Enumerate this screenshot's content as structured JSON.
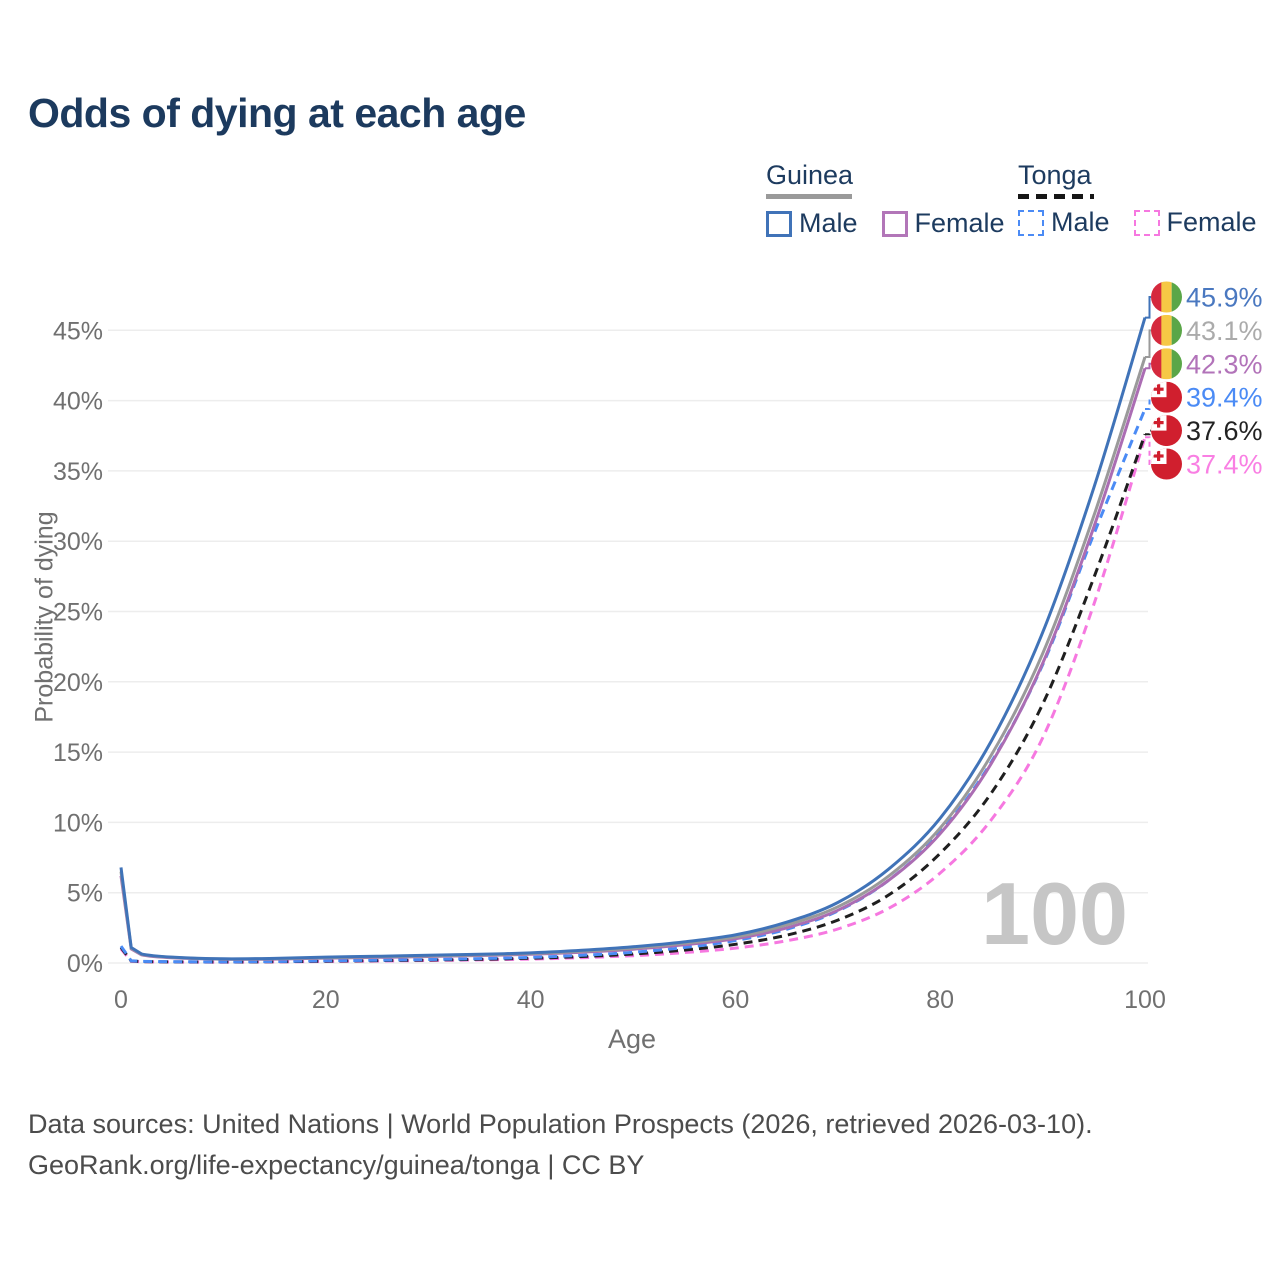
{
  "title": "Odds of dying at each age",
  "legend": {
    "groups": [
      {
        "title": "Guinea",
        "underline": "solid",
        "items": [
          {
            "label": "Male",
            "color": "#4073b8",
            "dashed": false
          },
          {
            "label": "Female",
            "color": "#b276b8",
            "dashed": false
          }
        ]
      },
      {
        "title": "Tonga",
        "underline": "dashed",
        "items": [
          {
            "label": "Male",
            "color": "#4b8bf5",
            "dashed": true
          },
          {
            "label": "Female",
            "color": "#f678e0",
            "dashed": true
          }
        ]
      }
    ]
  },
  "chart_data": {
    "type": "line",
    "title": "Odds of dying at each age",
    "xlabel": "Age",
    "ylabel": "Probability of dying",
    "xlim": [
      0,
      100
    ],
    "ylim": [
      0,
      47
    ],
    "xticks": [
      0,
      20,
      40,
      60,
      80,
      100
    ],
    "yticks": [
      0,
      5,
      10,
      15,
      20,
      25,
      30,
      35,
      40,
      45
    ],
    "grid": true,
    "legend_position": "top-right",
    "watermark": "100",
    "x": [
      0,
      1,
      2,
      5,
      10,
      15,
      20,
      25,
      30,
      35,
      40,
      45,
      50,
      55,
      60,
      65,
      70,
      75,
      80,
      85,
      90,
      95,
      100
    ],
    "series": [
      {
        "name": "Guinea Male",
        "country": "Guinea",
        "sex": "Male",
        "color": "#4073b8",
        "label_color": "#4a78c0",
        "dashed": false,
        "flag": "guinea",
        "end_label": "45.9%",
        "values": [
          6.8,
          1.1,
          0.65,
          0.42,
          0.3,
          0.33,
          0.42,
          0.48,
          0.55,
          0.62,
          0.72,
          0.9,
          1.15,
          1.5,
          2.0,
          2.9,
          4.3,
          6.7,
          10.3,
          15.8,
          23.5,
          33.8,
          45.9
        ]
      },
      {
        "name": "Guinea Both sexes",
        "country": "Guinea",
        "sex": "Both",
        "color": "#9a9a9a",
        "label_color": "#ababab",
        "dashed": false,
        "flag": "guinea",
        "end_label": "43.1%",
        "values": [
          6.5,
          1.05,
          0.62,
          0.4,
          0.28,
          0.3,
          0.38,
          0.44,
          0.5,
          0.57,
          0.67,
          0.83,
          1.06,
          1.4,
          1.85,
          2.7,
          4.0,
          6.2,
          9.6,
          14.8,
          22.0,
          31.8,
          43.1
        ]
      },
      {
        "name": "Guinea Female",
        "country": "Guinea",
        "sex": "Female",
        "color": "#ab6db3",
        "label_color": "#b273b9",
        "dashed": false,
        "flag": "guinea",
        "end_label": "42.3%",
        "values": [
          6.2,
          1.0,
          0.58,
          0.37,
          0.27,
          0.28,
          0.35,
          0.4,
          0.46,
          0.53,
          0.62,
          0.77,
          0.98,
          1.3,
          1.72,
          2.5,
          3.75,
          5.9,
          9.2,
          14.2,
          21.3,
          31.0,
          42.3
        ]
      },
      {
        "name": "Tonga Male",
        "country": "Tonga",
        "sex": "Male",
        "color": "#4b8bf5",
        "label_color": "#4b8bf5",
        "dashed": true,
        "flag": "tonga",
        "end_label": "39.4%",
        "values": [
          1.2,
          0.16,
          0.12,
          0.09,
          0.08,
          0.11,
          0.16,
          0.2,
          0.25,
          0.31,
          0.4,
          0.55,
          0.76,
          1.1,
          1.6,
          2.4,
          3.7,
          5.9,
          9.3,
          14.3,
          21.2,
          30.5,
          39.4
        ]
      },
      {
        "name": "Tonga Both sexes",
        "country": "Tonga",
        "sex": "Both",
        "color": "#1f1f1f",
        "label_color": "#222222",
        "dashed": true,
        "flag": "tonga",
        "end_label": "37.6%",
        "values": [
          1.1,
          0.14,
          0.1,
          0.08,
          0.07,
          0.09,
          0.13,
          0.17,
          0.21,
          0.26,
          0.34,
          0.46,
          0.64,
          0.92,
          1.33,
          1.98,
          3.05,
          4.85,
          7.8,
          12.1,
          18.4,
          27.4,
          37.6
        ]
      },
      {
        "name": "Tonga Female",
        "country": "Tonga",
        "sex": "Female",
        "color": "#f678e0",
        "label_color": "#f97fe3",
        "dashed": true,
        "flag": "tonga",
        "end_label": "37.4%",
        "values": [
          1.0,
          0.12,
          0.09,
          0.07,
          0.06,
          0.08,
          0.11,
          0.14,
          0.18,
          0.22,
          0.28,
          0.38,
          0.52,
          0.74,
          1.06,
          1.58,
          2.42,
          3.9,
          6.4,
          10.2,
          16.0,
          25.5,
          37.4
        ]
      }
    ],
    "flag_colors": {
      "guinea": {
        "red": "#d5293d",
        "yellow": "#f6c845",
        "green": "#5aa648"
      },
      "tonga": {
        "red": "#d01f2e",
        "white": "#ffffff"
      }
    }
  },
  "footer": {
    "line1": "Data sources: United Nations | World Population Prospects (2026, retrieved 2026-03-10).",
    "line2": "GeoRank.org/life-expectancy/guinea/tonga | CC BY"
  }
}
